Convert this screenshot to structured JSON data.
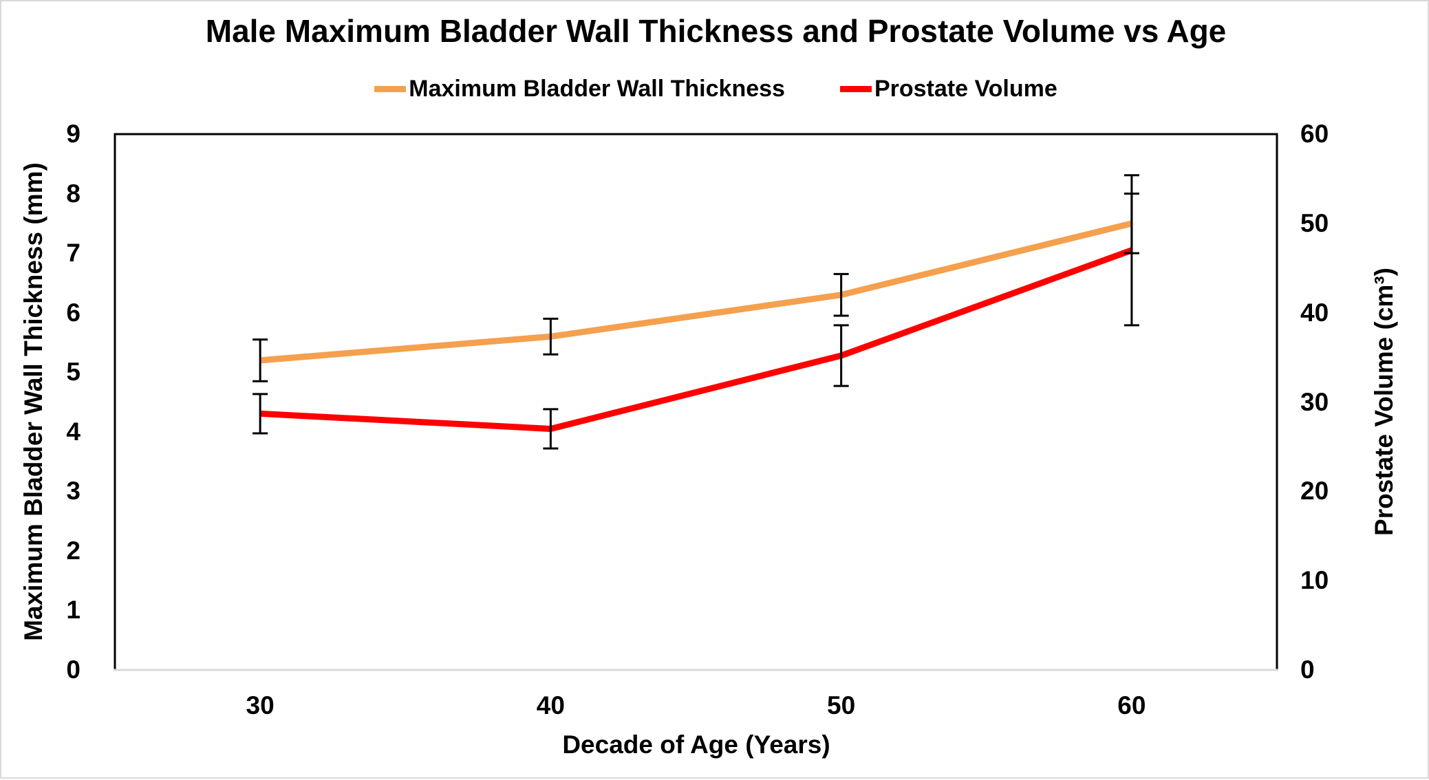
{
  "chart_data": {
    "type": "line",
    "title": "Male Maximum Bladder Wall Thickness and Prostate Volume vs Age",
    "categories": [
      "30",
      "40",
      "50",
      "60"
    ],
    "x_axis": {
      "label": "Decade of Age (Years)"
    },
    "left_axis": {
      "label": "Maximum Bladder Wall Thickness (mm)",
      "min": 0,
      "max": 9,
      "tick_step": 1,
      "tick_labels": [
        "0",
        "1",
        "2",
        "3",
        "4",
        "5",
        "6",
        "7",
        "8",
        "9"
      ]
    },
    "right_axis": {
      "label": "Prostate Volume (cm³)",
      "min": 0,
      "max": 60,
      "tick_step": 10,
      "tick_labels": [
        "0",
        "10",
        "20",
        "30",
        "40",
        "50",
        "60"
      ]
    },
    "series": [
      {
        "name": "Maximum Bladder Wall Thickness",
        "axis": "left",
        "color": "#F4A04E",
        "values": [
          5.2,
          5.6,
          6.3,
          7.5
        ],
        "error_bars": [
          0.35,
          0.3,
          0.35,
          0.5
        ]
      },
      {
        "name": "Prostate Volume",
        "axis": "right",
        "color": "#FF0000",
        "values": [
          28.7,
          27.0,
          35.2,
          47.0
        ],
        "error_bars": [
          2.2,
          2.2,
          3.4,
          8.4
        ]
      }
    ],
    "error_bar_color": "#000000",
    "plot_border_color": "#000000",
    "x_axis_line_color": "#D9D9D9",
    "legend_position": "top",
    "grid": false
  }
}
